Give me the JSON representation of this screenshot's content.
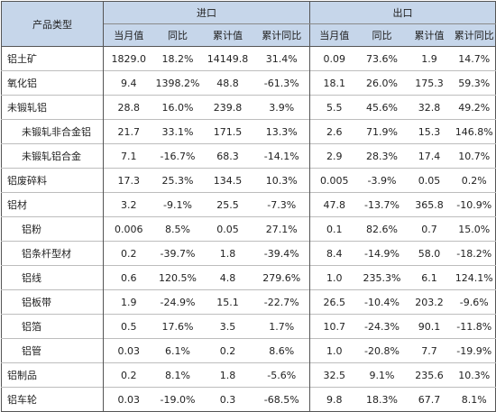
{
  "table": {
    "product_type_header": "产品类型",
    "group_import": "进口",
    "group_export": "出口",
    "subheaders": [
      "当月值",
      "同比",
      "累计值",
      "累计同比",
      "当月值",
      "同比",
      "累计值",
      "累计同比"
    ],
    "rows": [
      {
        "name": "铝土矿",
        "level": 0,
        "cells": [
          "1829.0",
          "18.2%",
          "14149.8",
          "31.4%",
          "0.09",
          "73.6%",
          "1.9",
          "14.7%"
        ]
      },
      {
        "name": "氧化铝",
        "level": 0,
        "cells": [
          "9.4",
          "1398.2%",
          "48.8",
          "-61.3%",
          "18.1",
          "26.0%",
          "175.3",
          "59.3%"
        ]
      },
      {
        "name": "未锻轧铝",
        "level": 0,
        "cells": [
          "28.8",
          "16.0%",
          "239.8",
          "3.9%",
          "5.5",
          "45.6%",
          "32.8",
          "49.2%"
        ]
      },
      {
        "name": "未锻轧非合金铝",
        "level": 1,
        "cells": [
          "21.7",
          "33.1%",
          "171.5",
          "13.3%",
          "2.6",
          "71.9%",
          "15.3",
          "146.8%"
        ]
      },
      {
        "name": "未锻轧铝合金",
        "level": 1,
        "cells": [
          "7.1",
          "-16.7%",
          "68.3",
          "-14.1%",
          "2.9",
          "28.3%",
          "17.4",
          "10.7%"
        ]
      },
      {
        "name": "铝废碎料",
        "level": 0,
        "cells": [
          "17.3",
          "25.3%",
          "134.5",
          "10.3%",
          "0.005",
          "-3.9%",
          "0.05",
          "0.2%"
        ]
      },
      {
        "name": "铝材",
        "level": 0,
        "cells": [
          "3.2",
          "-9.1%",
          "25.5",
          "-7.3%",
          "47.8",
          "-13.7%",
          "365.8",
          "-10.9%"
        ]
      },
      {
        "name": "铝粉",
        "level": 1,
        "cells": [
          "0.006",
          "8.5%",
          "0.05",
          "27.1%",
          "0.1",
          "82.6%",
          "0.7",
          "15.0%"
        ]
      },
      {
        "name": "铝条杆型材",
        "level": 1,
        "cells": [
          "0.2",
          "-39.7%",
          "1.8",
          "-39.4%",
          "8.4",
          "-14.9%",
          "58.0",
          "-18.2%"
        ]
      },
      {
        "name": "铝线",
        "level": 1,
        "cells": [
          "0.6",
          "120.5%",
          "4.8",
          "279.6%",
          "1.0",
          "235.3%",
          "6.1",
          "124.1%"
        ]
      },
      {
        "name": "铝板带",
        "level": 1,
        "cells": [
          "1.9",
          "-24.9%",
          "15.1",
          "-22.7%",
          "26.5",
          "-10.4%",
          "203.2",
          "-9.6%"
        ]
      },
      {
        "name": "铝箔",
        "level": 1,
        "cells": [
          "0.5",
          "17.6%",
          "3.5",
          "1.7%",
          "10.7",
          "-24.3%",
          "90.1",
          "-11.8%"
        ]
      },
      {
        "name": "铝管",
        "level": 1,
        "cells": [
          "0.03",
          "6.1%",
          "0.2",
          "8.6%",
          "1.0",
          "-20.8%",
          "7.7",
          "-19.9%"
        ]
      },
      {
        "name": "铝制品",
        "level": 0,
        "cells": [
          "0.2",
          "8.1%",
          "1.8",
          "-5.6%",
          "32.5",
          "9.1%",
          "235.6",
          "10.3%"
        ]
      },
      {
        "name": "铝车轮",
        "level": 0,
        "cells": [
          "0.03",
          "-19.0%",
          "0.3",
          "-68.5%",
          "9.8",
          "18.3%",
          "67.7",
          "8.1%"
        ]
      }
    ]
  }
}
